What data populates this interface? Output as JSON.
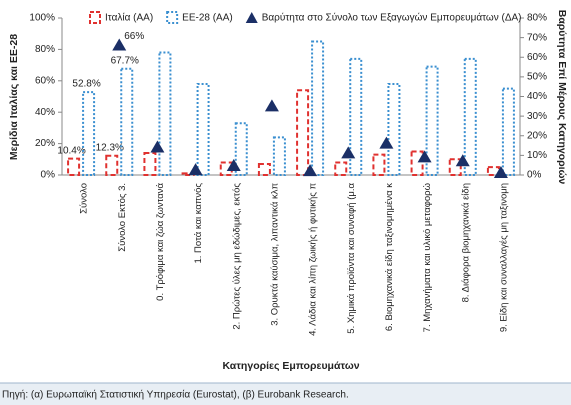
{
  "chart_data": {
    "type": "bar",
    "categories": [
      "Σύνολο",
      "Σύνολο Εκτός 3.",
      "0. Τρόφιμα και ζώα ζωντανά",
      "1. Ποτά και καπνός",
      "2. Πρώτες ύλες μη εδώδιμες, εκτός",
      "3. Ορυκτά καύσιμα, λιπαντικά κλπ",
      "4. Λάδια και λίπη ζωικής ή φυτικής π",
      "5. Χημικά προϊόντα και συναφή (μ.α",
      "6. Βιομηχανικά είδη ταξινομημένα κ",
      "7. Μηχανήματα και υλικό μεταφορώ",
      "8. Διάφορα βιομηχανικά είδη",
      "9. Είδη και συναλλαγές μη ταξινομη"
    ],
    "series": [
      {
        "name": "Ιταλία (ΑΑ)",
        "color": "#e0312f",
        "values": [
          10.4,
          12.3,
          14,
          1,
          8,
          7,
          54,
          8,
          13,
          15,
          10,
          5
        ],
        "value_labels": [
          "10.4%",
          "12.3%",
          null,
          null,
          null,
          null,
          null,
          null,
          null,
          null,
          null,
          null
        ]
      },
      {
        "name": "ΕΕ-28 (ΑΑ)",
        "color": "#3a8fd0",
        "values": [
          52.8,
          67.7,
          78,
          58,
          33,
          24,
          85,
          74,
          58,
          69,
          74,
          55
        ],
        "value_labels": [
          "52.8%",
          "67.7%",
          null,
          null,
          null,
          null,
          null,
          null,
          null,
          null,
          null,
          null
        ]
      },
      {
        "name": "Βαρύτητα στο Σύνολο των Εξαγωγών Εμπορευμάτων (ΔΑ)",
        "color": "#1b2f66",
        "axis": "y2",
        "marker": "triangle",
        "values": [
          null,
          66,
          14,
          2.5,
          4.6,
          35,
          2,
          11,
          16,
          9,
          7,
          1
        ],
        "value_labels": [
          null,
          "66%",
          null,
          null,
          null,
          null,
          null,
          null,
          null,
          null,
          null,
          null
        ]
      }
    ],
    "ylabel": "Μερίδια Ιταλίας και ΕΕ-28",
    "y2label": "Βαρύτητα Επί Μέρους Κατηγοριών",
    "xlabel": "Κατηγορίες Εμπορευμάτων",
    "ylim": [
      0,
      100
    ],
    "yticks": [
      {
        "value": 0,
        "label": "0%"
      },
      {
        "value": 20,
        "label": "20%"
      },
      {
        "value": 40,
        "label": "40%"
      },
      {
        "value": 60,
        "label": "60%"
      },
      {
        "value": 80,
        "label": "80%"
      },
      {
        "value": 100,
        "label": "100%"
      }
    ],
    "y2lim": [
      0,
      80
    ],
    "y2ticks": [
      {
        "value": 0,
        "label": "0%"
      },
      {
        "value": 10,
        "label": "10%"
      },
      {
        "value": 20,
        "label": "20%"
      },
      {
        "value": 30,
        "label": "30%"
      },
      {
        "value": 40,
        "label": "40%"
      },
      {
        "value": 50,
        "label": "50%"
      },
      {
        "value": 60,
        "label": "60%"
      },
      {
        "value": 70,
        "label": "70%"
      },
      {
        "value": 80,
        "label": "80%"
      }
    ],
    "source": "Πηγή: (α) Ευρωπαϊκή Στατιστική Υπηρεσία (Eurostat), (β) Eurobank Research."
  }
}
